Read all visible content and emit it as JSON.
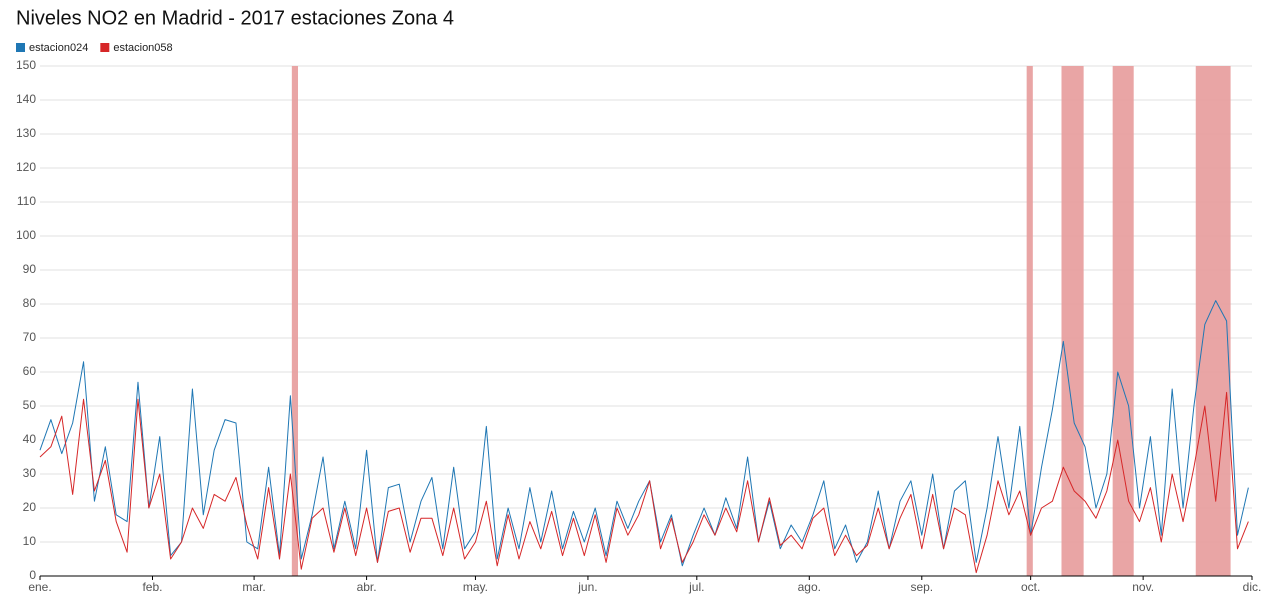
{
  "chart_data": {
    "type": "line",
    "title": "Niveles NO2 en Madrid - 2017 estaciones Zona 4",
    "x": [
      0,
      3,
      6,
      9,
      12,
      15,
      18,
      21,
      24,
      27,
      30,
      33,
      36,
      39,
      42,
      45,
      48,
      51,
      54,
      57,
      60,
      63,
      66,
      69,
      72,
      75,
      78,
      81,
      84,
      87,
      90,
      93,
      96,
      99,
      102,
      105,
      108,
      111,
      114,
      117,
      120,
      123,
      126,
      129,
      132,
      135,
      138,
      141,
      144,
      147,
      150,
      153,
      156,
      159,
      162,
      165,
      168,
      171,
      174,
      177,
      180,
      183,
      186,
      189,
      192,
      195,
      198,
      201,
      204,
      207,
      210,
      213,
      216,
      219,
      222,
      225,
      228,
      231,
      234,
      237,
      240,
      243,
      246,
      249,
      252,
      255,
      258,
      261,
      264,
      267,
      270,
      273,
      276,
      279,
      282,
      285,
      288,
      291,
      294,
      297,
      300,
      303,
      306,
      309,
      312,
      315,
      318,
      321,
      324,
      327,
      330,
      333
    ],
    "series": [
      {
        "name": "estacion024",
        "color": "#1f77b4",
        "values": [
          37,
          46,
          36,
          45,
          63,
          22,
          38,
          18,
          16,
          57,
          20,
          41,
          6,
          10,
          55,
          18,
          37,
          46,
          45,
          10,
          8,
          32,
          6,
          53,
          5,
          18,
          35,
          8,
          22,
          8,
          37,
          4,
          26,
          27,
          10,
          22,
          29,
          8,
          32,
          8,
          13,
          44,
          5,
          20,
          8,
          26,
          10,
          25,
          8,
          19,
          10,
          20,
          6,
          22,
          14,
          22,
          28,
          10,
          18,
          3,
          12,
          20,
          12,
          23,
          14,
          35,
          10,
          22,
          8,
          15,
          10,
          18,
          28,
          8,
          15,
          4,
          10,
          25,
          8,
          22,
          28,
          12,
          30,
          8,
          25,
          28,
          4,
          20,
          41,
          20,
          44,
          12,
          32,
          49,
          69,
          45,
          38,
          20,
          30,
          60,
          50,
          20,
          41,
          12,
          55,
          20,
          50,
          74,
          81,
          75,
          12,
          26
        ]
      },
      {
        "name": "estacion058",
        "color": "#d62728",
        "values": [
          35,
          38,
          47,
          24,
          52,
          25,
          34,
          16,
          7,
          52,
          20,
          30,
          5,
          10,
          20,
          14,
          24,
          22,
          29,
          15,
          5,
          26,
          5,
          30,
          2,
          17,
          20,
          7,
          20,
          6,
          20,
          4,
          19,
          20,
          7,
          17,
          17,
          6,
          20,
          5,
          10,
          22,
          3,
          18,
          5,
          16,
          8,
          19,
          6,
          17,
          6,
          18,
          4,
          20,
          12,
          18,
          28,
          8,
          17,
          4,
          10,
          18,
          12,
          20,
          13,
          28,
          10,
          23,
          9,
          12,
          8,
          17,
          20,
          6,
          12,
          6,
          9,
          20,
          8,
          17,
          24,
          8,
          24,
          8,
          20,
          18,
          1,
          12,
          28,
          18,
          25,
          12,
          20,
          22,
          32,
          25,
          22,
          17,
          25,
          40,
          22,
          16,
          26,
          10,
          30,
          16,
          32,
          50,
          22,
          54,
          8,
          16
        ]
      }
    ],
    "bands": [
      [
        69.4,
        71.1
      ],
      [
        271.9,
        273.6
      ],
      [
        281.5,
        287.6
      ],
      [
        295.6,
        301.4
      ],
      [
        318.5,
        328.1
      ]
    ],
    "band_color": "#e8a0a0",
    "xlim": [
      0,
      334
    ],
    "xticks": [
      {
        "value": 0,
        "label": "ene."
      },
      {
        "value": 31,
        "label": "feb."
      },
      {
        "value": 59,
        "label": "mar."
      },
      {
        "value": 90,
        "label": "abr."
      },
      {
        "value": 120,
        "label": "may."
      },
      {
        "value": 151,
        "label": "jun."
      },
      {
        "value": 181,
        "label": "jul."
      },
      {
        "value": 212,
        "label": "ago."
      },
      {
        "value": 243,
        "label": "sep."
      },
      {
        "value": 273,
        "label": "oct."
      },
      {
        "value": 304,
        "label": "nov."
      },
      {
        "value": 334,
        "label": "dic."
      }
    ],
    "ylim": [
      0,
      150
    ],
    "yticks": [
      0,
      10,
      20,
      30,
      40,
      50,
      60,
      70,
      80,
      90,
      100,
      110,
      120,
      130,
      140,
      150
    ],
    "grid": true,
    "legend": "top-left"
  }
}
